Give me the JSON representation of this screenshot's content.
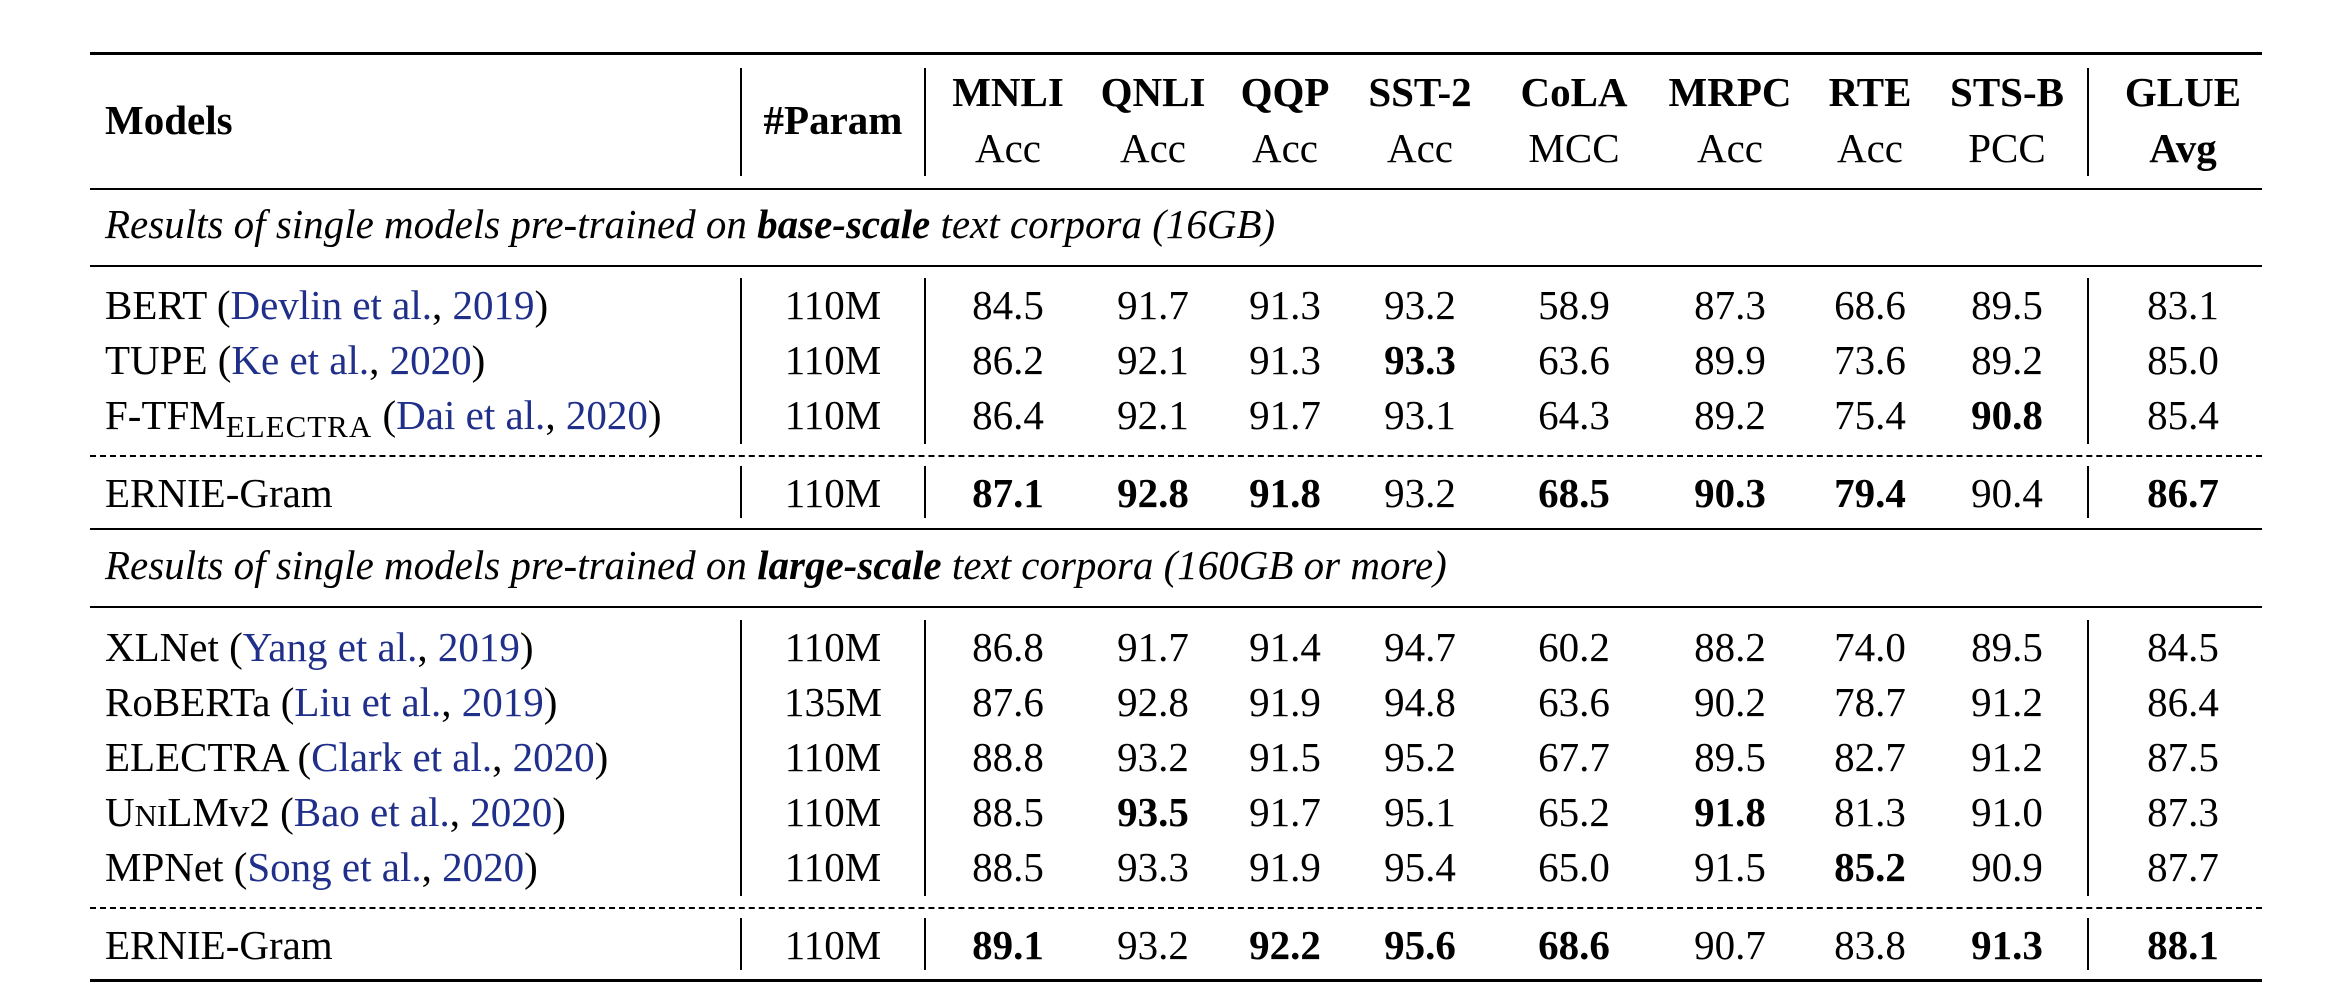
{
  "table": {
    "header": {
      "models": "Models",
      "param": "#Param",
      "columns": [
        {
          "name": "MNLI",
          "metric": "Acc"
        },
        {
          "name": "QNLI",
          "metric": "Acc"
        },
        {
          "name": "QQP",
          "metric": "Acc"
        },
        {
          "name": "SST-2",
          "metric": "Acc"
        },
        {
          "name": "CoLA",
          "metric": "MCC"
        },
        {
          "name": "MRPC",
          "metric": "Acc"
        },
        {
          "name": "RTE",
          "metric": "Acc"
        },
        {
          "name": "STS-B",
          "metric": "PCC"
        },
        {
          "name": "GLUE",
          "metric": "Avg"
        }
      ]
    },
    "sections": [
      {
        "title_pre": "Results of single models pre-trained on ",
        "title_bold": "base-scale",
        "title_post": " text corpora (16GB)",
        "rows": [
          {
            "model": "BERT",
            "model_sub": "",
            "cite_open": " (",
            "cite_authors": "Devlin et al.",
            "cite_sep": ", ",
            "cite_year": "2019",
            "cite_close": ")",
            "param": "110M",
            "values": [
              "84.5",
              "91.7",
              "91.3",
              "93.2",
              "58.9",
              "87.3",
              "68.6",
              "89.5",
              "83.1"
            ],
            "bold": [
              false,
              false,
              false,
              false,
              false,
              false,
              false,
              false,
              false
            ]
          },
          {
            "model": "TUPE",
            "model_sub": "",
            "cite_open": " (",
            "cite_authors": "Ke et al.",
            "cite_sep": ", ",
            "cite_year": "2020",
            "cite_close": ")",
            "param": "110M",
            "values": [
              "86.2",
              "92.1",
              "91.3",
              "93.3",
              "63.6",
              "89.9",
              "73.6",
              "89.2",
              "85.0"
            ],
            "bold": [
              false,
              false,
              false,
              true,
              false,
              false,
              false,
              false,
              false
            ]
          },
          {
            "model": "F-TFM",
            "model_sub": "ELECTRA",
            "cite_open": " (",
            "cite_authors": "Dai et al.",
            "cite_sep": ", ",
            "cite_year": "2020",
            "cite_close": ")",
            "param": "110M",
            "values": [
              "86.4",
              "92.1",
              "91.7",
              "93.1",
              "64.3",
              "89.2",
              "75.4",
              "90.8",
              "85.4"
            ],
            "bold": [
              false,
              false,
              false,
              false,
              false,
              false,
              false,
              true,
              false
            ]
          }
        ],
        "ours": {
          "model": "ERNIE-Gram",
          "param": "110M",
          "values": [
            "87.1",
            "92.8",
            "91.8",
            "93.2",
            "68.5",
            "90.3",
            "79.4",
            "90.4",
            "86.7"
          ],
          "bold": [
            true,
            true,
            true,
            false,
            true,
            true,
            true,
            false,
            true
          ]
        }
      },
      {
        "title_pre": "Results of single models pre-trained on ",
        "title_bold": "large-scale",
        "title_post": " text corpora (160GB or more)",
        "rows": [
          {
            "model": "XLNet",
            "model_sub": "",
            "cite_open": " (",
            "cite_authors": "Yang et al.",
            "cite_sep": ", ",
            "cite_year": "2019",
            "cite_close": ")",
            "param": "110M",
            "values": [
              "86.8",
              "91.7",
              "91.4",
              "94.7",
              "60.2",
              "88.2",
              "74.0",
              "89.5",
              "84.5"
            ],
            "bold": [
              false,
              false,
              false,
              false,
              false,
              false,
              false,
              false,
              false
            ]
          },
          {
            "model": "RoBERTa",
            "model_sub": "",
            "cite_open": " (",
            "cite_authors": "Liu et al.",
            "cite_sep": ", ",
            "cite_year": "2019",
            "cite_close": ")",
            "param": "135M",
            "values": [
              "87.6",
              "92.8",
              "91.9",
              "94.8",
              "63.6",
              "90.2",
              "78.7",
              "91.2",
              "86.4"
            ],
            "bold": [
              false,
              false,
              false,
              false,
              false,
              false,
              false,
              false,
              false
            ]
          },
          {
            "model": "ELECTRA",
            "model_sub": "",
            "cite_open": " (",
            "cite_authors": "Clark et al.",
            "cite_sep": ", ",
            "cite_year": "2020",
            "cite_close": ")",
            "param": "110M",
            "values": [
              "88.8",
              "93.2",
              "91.5",
              "95.2",
              "67.7",
              "89.5",
              "82.7",
              "91.2",
              "87.5"
            ],
            "bold": [
              false,
              false,
              false,
              false,
              false,
              false,
              false,
              false,
              false
            ]
          },
          {
            "model": "UniLMv2",
            "model_sub": "",
            "cite_open": " (",
            "cite_authors": "Bao et al.",
            "cite_sep": ", ",
            "cite_year": "2020",
            "cite_close": ")",
            "param": "110M",
            "values": [
              "88.5",
              "93.5",
              "91.7",
              "95.1",
              "65.2",
              "91.8",
              "81.3",
              "91.0",
              "87.3"
            ],
            "bold": [
              false,
              true,
              false,
              false,
              false,
              true,
              false,
              false,
              false
            ]
          },
          {
            "model": "MPNet",
            "model_sub": "",
            "cite_open": " (",
            "cite_authors": "Song et al.",
            "cite_sep": ", ",
            "cite_year": "2020",
            "cite_close": ")",
            "param": "110M",
            "values": [
              "88.5",
              "93.3",
              "91.9",
              "95.4",
              "65.0",
              "91.5",
              "85.2",
              "90.9",
              "87.7"
            ],
            "bold": [
              false,
              false,
              false,
              false,
              false,
              false,
              true,
              false,
              false
            ]
          }
        ],
        "ours": {
          "model": "ERNIE-Gram",
          "param": "110M",
          "values": [
            "89.1",
            "93.2",
            "92.2",
            "95.6",
            "68.6",
            "90.7",
            "83.8",
            "91.3",
            "88.1"
          ],
          "bold": [
            true,
            false,
            true,
            true,
            true,
            false,
            false,
            true,
            true
          ]
        }
      }
    ]
  }
}
